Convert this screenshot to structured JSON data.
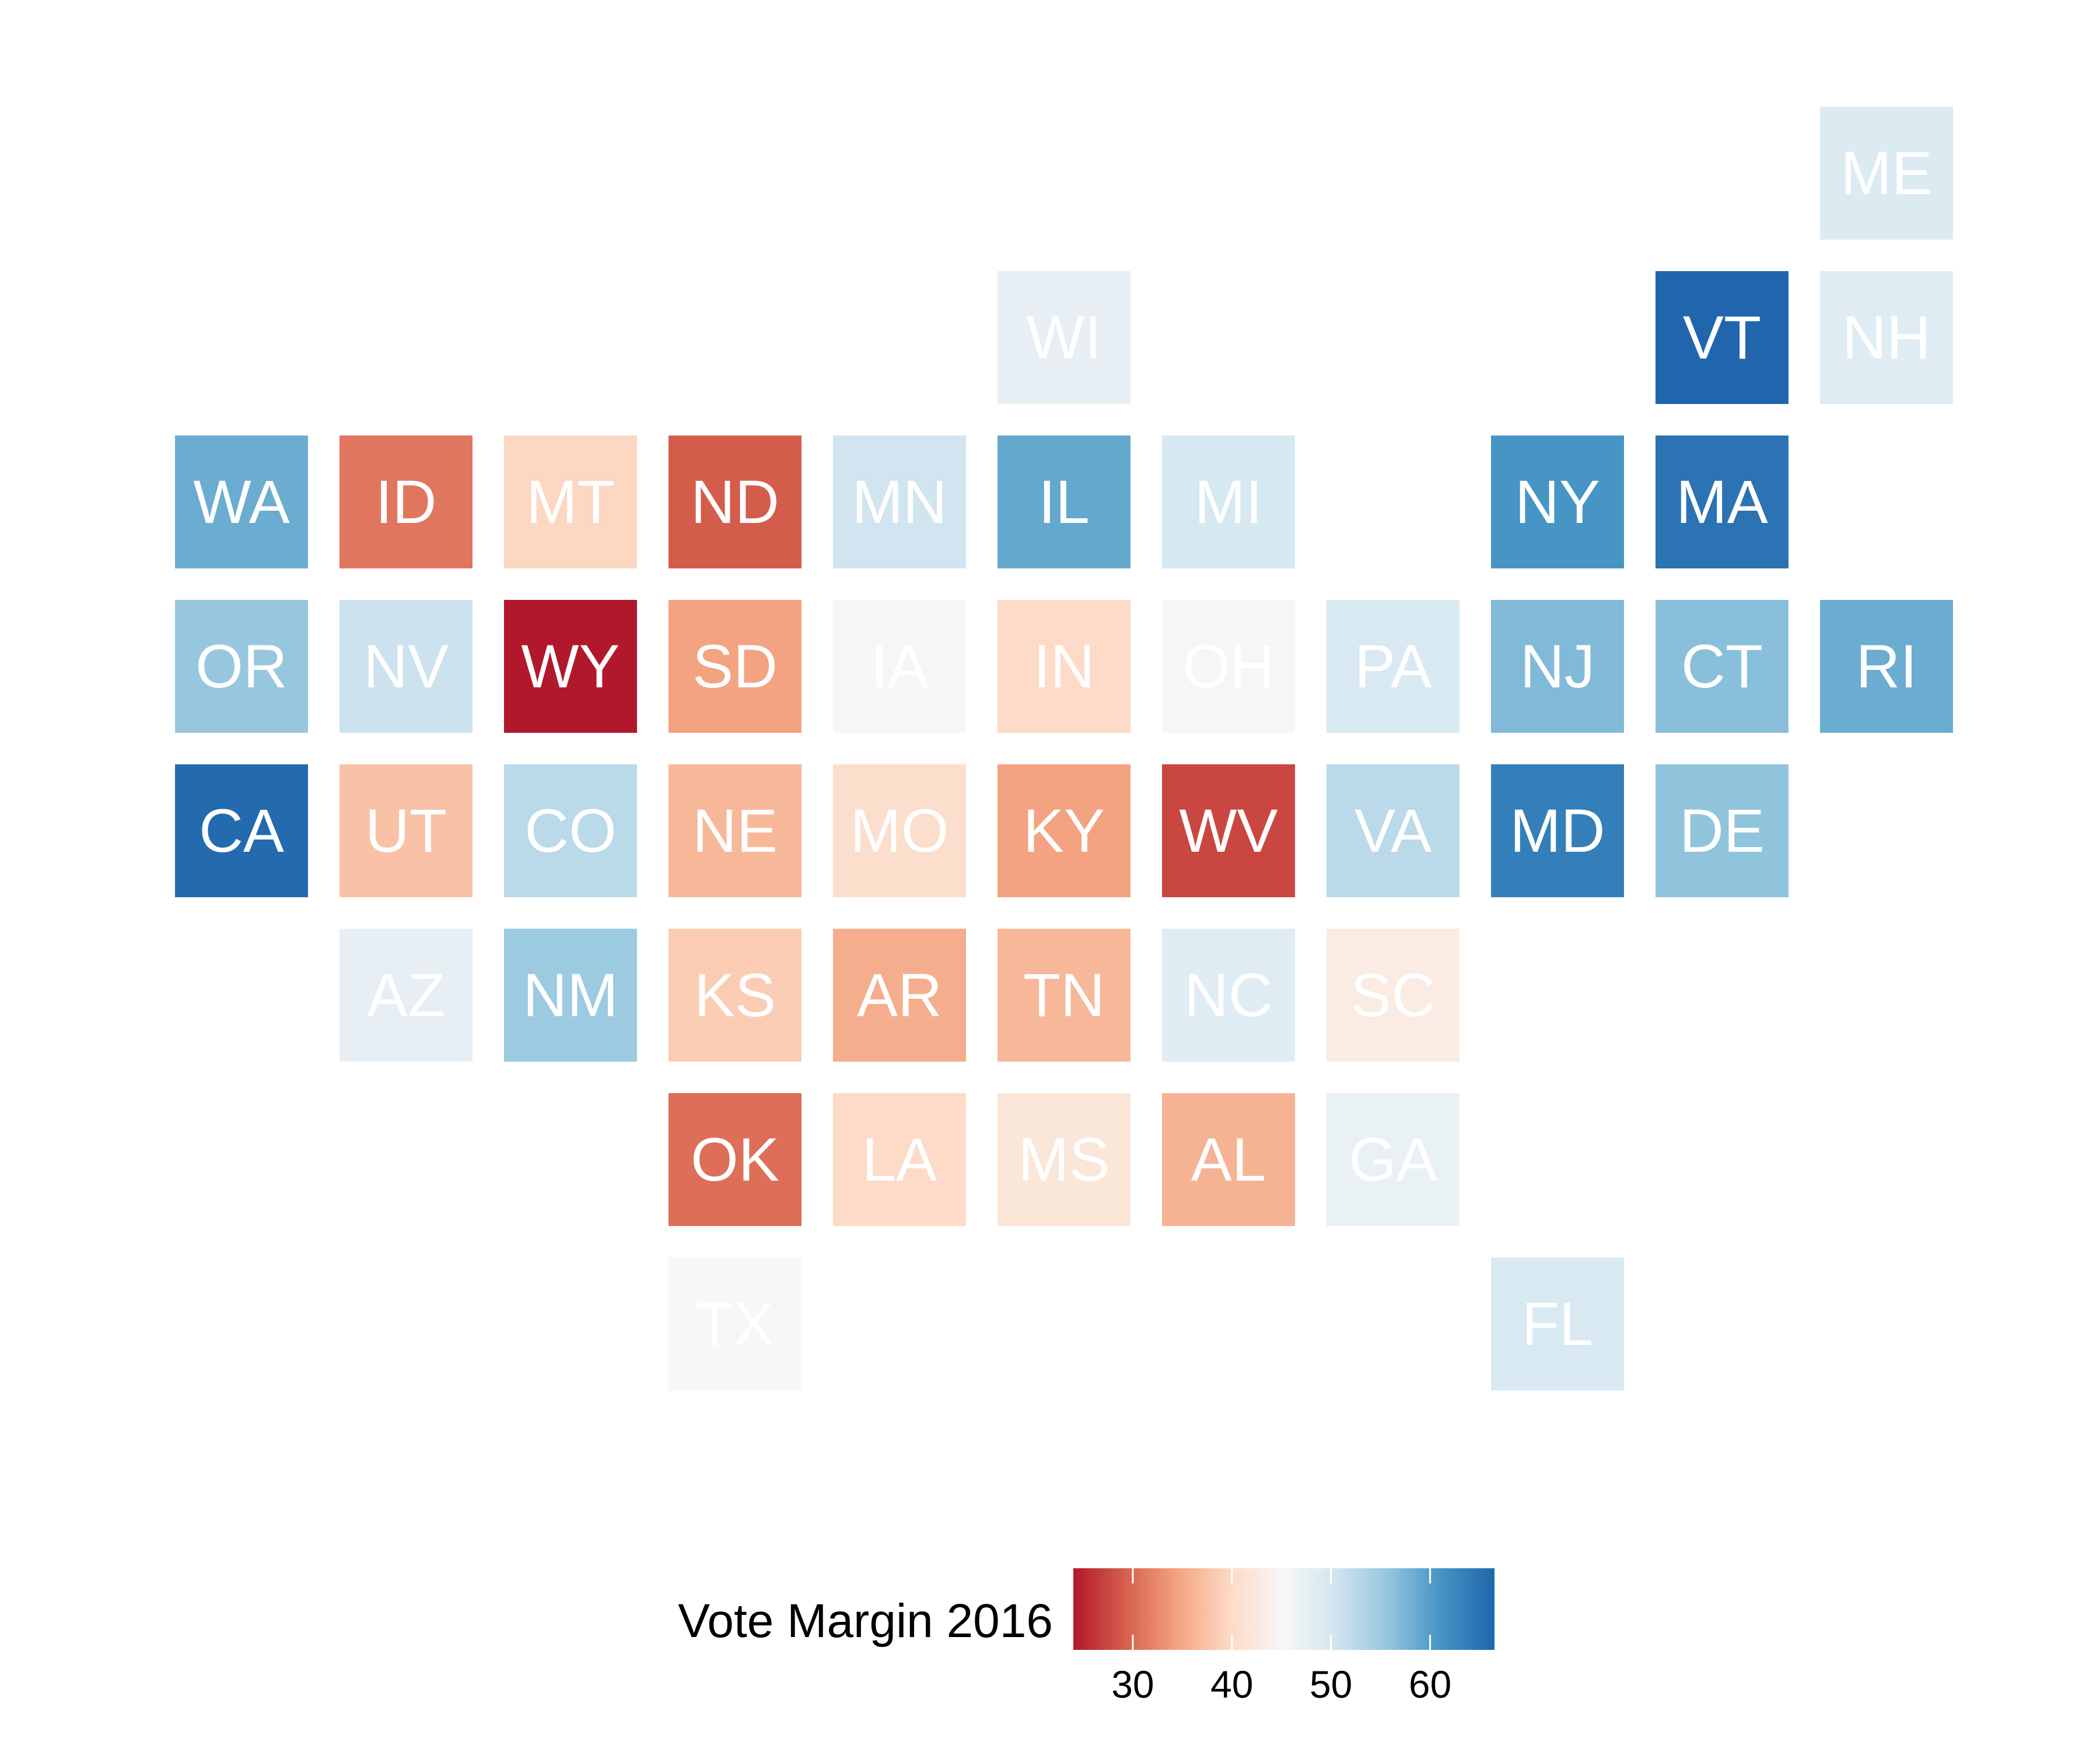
{
  "chart_data": {
    "type": "heatmap",
    "subtype": "tile-grid-map",
    "grid": {
      "columns": 11,
      "rows": 8
    },
    "tiles": [
      {
        "state": "ME",
        "col": 10,
        "row": 0,
        "value": 49.0
      },
      {
        "state": "WI",
        "col": 5,
        "row": 1,
        "value": 47.5
      },
      {
        "state": "VT",
        "col": 9,
        "row": 1,
        "value": 66.5
      },
      {
        "state": "NH",
        "col": 10,
        "row": 1,
        "value": 48.5
      },
      {
        "state": "WA",
        "col": 0,
        "row": 2,
        "value": 58.5
      },
      {
        "state": "ID",
        "col": 1,
        "row": 2,
        "value": 31.0
      },
      {
        "state": "MT",
        "col": 2,
        "row": 2,
        "value": 39.5
      },
      {
        "state": "ND",
        "col": 3,
        "row": 2,
        "value": 29.0
      },
      {
        "state": "MN",
        "col": 4,
        "row": 2,
        "value": 50.5
      },
      {
        "state": "IL",
        "col": 5,
        "row": 2,
        "value": 59.0
      },
      {
        "state": "MI",
        "col": 6,
        "row": 2,
        "value": 49.8
      },
      {
        "state": "NY",
        "col": 8,
        "row": 2,
        "value": 61.0
      },
      {
        "state": "MA",
        "col": 9,
        "row": 2,
        "value": 65.0
      },
      {
        "state": "OR",
        "col": 0,
        "row": 3,
        "value": 55.5
      },
      {
        "state": "NV",
        "col": 1,
        "row": 3,
        "value": 51.0
      },
      {
        "state": "WY",
        "col": 2,
        "row": 3,
        "value": 24.0
      },
      {
        "state": "SD",
        "col": 3,
        "row": 3,
        "value": 34.5
      },
      {
        "state": "IA",
        "col": 4,
        "row": 3,
        "value": 45.0
      },
      {
        "state": "IN",
        "col": 5,
        "row": 3,
        "value": 40.0
      },
      {
        "state": "OH",
        "col": 6,
        "row": 3,
        "value": 45.5
      },
      {
        "state": "PA",
        "col": 7,
        "row": 3,
        "value": 49.5
      },
      {
        "state": "NJ",
        "col": 8,
        "row": 3,
        "value": 57.0
      },
      {
        "state": "CT",
        "col": 9,
        "row": 3,
        "value": 56.5
      },
      {
        "state": "RI",
        "col": 10,
        "row": 3,
        "value": 58.5
      },
      {
        "state": "CA",
        "col": 0,
        "row": 4,
        "value": 66.0
      },
      {
        "state": "UT",
        "col": 1,
        "row": 4,
        "value": 37.5
      },
      {
        "state": "CO",
        "col": 2,
        "row": 4,
        "value": 52.5
      },
      {
        "state": "NE",
        "col": 3,
        "row": 4,
        "value": 36.5
      },
      {
        "state": "MO",
        "col": 4,
        "row": 4,
        "value": 40.5
      },
      {
        "state": "KY",
        "col": 5,
        "row": 4,
        "value": 34.5
      },
      {
        "state": "WV",
        "col": 6,
        "row": 4,
        "value": 27.5
      },
      {
        "state": "VA",
        "col": 7,
        "row": 4,
        "value": 52.5
      },
      {
        "state": "MD",
        "col": 8,
        "row": 4,
        "value": 63.5
      },
      {
        "state": "DE",
        "col": 9,
        "row": 4,
        "value": 56.0
      },
      {
        "state": "AZ",
        "col": 1,
        "row": 5,
        "value": 47.5
      },
      {
        "state": "NM",
        "col": 2,
        "row": 5,
        "value": 55.0
      },
      {
        "state": "KS",
        "col": 3,
        "row": 5,
        "value": 38.5
      },
      {
        "state": "AR",
        "col": 4,
        "row": 5,
        "value": 35.5
      },
      {
        "state": "TN",
        "col": 5,
        "row": 5,
        "value": 36.5
      },
      {
        "state": "NC",
        "col": 6,
        "row": 5,
        "value": 48.5
      },
      {
        "state": "SC",
        "col": 7,
        "row": 5,
        "value": 43.0
      },
      {
        "state": "OK",
        "col": 3,
        "row": 6,
        "value": 30.5
      },
      {
        "state": "LA",
        "col": 4,
        "row": 6,
        "value": 40.0
      },
      {
        "state": "MS",
        "col": 5,
        "row": 6,
        "value": 42.0
      },
      {
        "state": "AL",
        "col": 6,
        "row": 6,
        "value": 36.0
      },
      {
        "state": "GA",
        "col": 7,
        "row": 6,
        "value": 47.0
      },
      {
        "state": "TX",
        "col": 3,
        "row": 7,
        "value": 45.3
      },
      {
        "state": "FL",
        "col": 8,
        "row": 7,
        "value": 49.5
      }
    ],
    "legend": {
      "title": "Vote Margin 2016",
      "position": "bottom",
      "range": [
        24,
        66.5
      ],
      "ticks": [
        30,
        40,
        50,
        60
      ],
      "tick_labels": [
        "30",
        "40",
        "50",
        "60"
      ]
    },
    "color_scale": {
      "name": "RdBu",
      "stops": [
        "#b2182b",
        "#d6604d",
        "#f4a582",
        "#fddbc7",
        "#f7f7f7",
        "#d1e5f0",
        "#92c5de",
        "#4393c3",
        "#2166ac"
      ]
    },
    "grid_lines": false
  }
}
